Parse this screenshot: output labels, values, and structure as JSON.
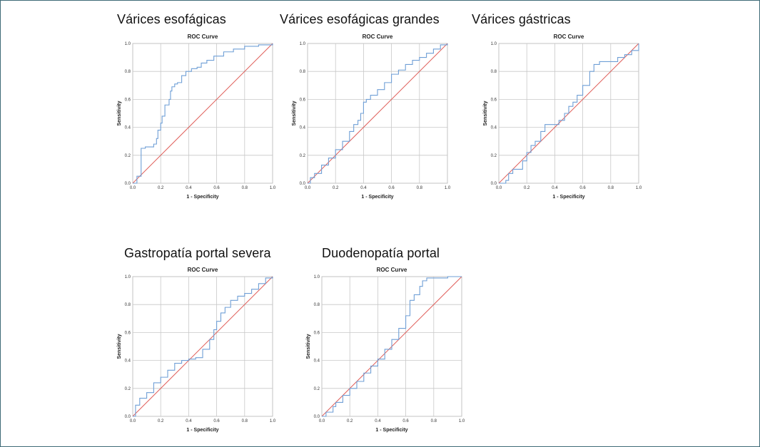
{
  "panels": [
    {
      "id": "varices-esofagicas",
      "heading": "Várices esofágicas",
      "chart_data": {
        "type": "line",
        "title": "ROC Curve",
        "xlabel": "1 - Specificity",
        "ylabel": "Sensitivity",
        "xlim": [
          0,
          1
        ],
        "ylim": [
          0,
          1
        ],
        "ticks": [
          "0.0",
          "0.2",
          "0.4",
          "0.6",
          "0.8",
          "1.0"
        ],
        "grid": true,
        "series": [
          {
            "role": "roc-curve",
            "color": "#6f9fd6",
            "x": [
              0.0,
              0.03,
              0.06,
              0.06,
              0.09,
              0.15,
              0.17,
              0.18,
              0.2,
              0.21,
              0.23,
              0.26,
              0.27,
              0.28,
              0.3,
              0.32,
              0.35,
              0.38,
              0.42,
              0.46,
              0.49,
              0.53,
              0.58,
              0.65,
              0.72,
              0.8,
              0.9,
              1.0
            ],
            "y": [
              0.0,
              0.05,
              0.13,
              0.25,
              0.26,
              0.28,
              0.32,
              0.38,
              0.43,
              0.48,
              0.56,
              0.6,
              0.66,
              0.69,
              0.71,
              0.72,
              0.77,
              0.8,
              0.82,
              0.83,
              0.86,
              0.88,
              0.91,
              0.94,
              0.96,
              0.98,
              0.99,
              1.0
            ]
          },
          {
            "role": "reference-line",
            "color": "#e0605c",
            "x": [
              0,
              1
            ],
            "y": [
              0,
              1
            ]
          }
        ]
      }
    },
    {
      "id": "varices-esofagicas-grandes",
      "heading": "Várices esofágicas grandes",
      "chart_data": {
        "type": "line",
        "title": "ROC Curve",
        "xlabel": "1 - Specificity",
        "ylabel": "Sensitivity",
        "xlim": [
          0,
          1
        ],
        "ylim": [
          0,
          1
        ],
        "ticks": [
          "0.0",
          "0.2",
          "0.4",
          "0.6",
          "0.8",
          "1.0"
        ],
        "grid": true,
        "series": [
          {
            "role": "roc-curve",
            "color": "#6f9fd6",
            "x": [
              0.0,
              0.02,
              0.05,
              0.1,
              0.15,
              0.2,
              0.25,
              0.3,
              0.33,
              0.36,
              0.38,
              0.4,
              0.42,
              0.45,
              0.5,
              0.55,
              0.6,
              0.65,
              0.7,
              0.75,
              0.8,
              0.85,
              0.9,
              0.95,
              1.0
            ],
            "y": [
              0.0,
              0.04,
              0.07,
              0.13,
              0.18,
              0.24,
              0.3,
              0.37,
              0.42,
              0.45,
              0.5,
              0.58,
              0.6,
              0.63,
              0.67,
              0.72,
              0.78,
              0.81,
              0.85,
              0.88,
              0.9,
              0.93,
              0.96,
              0.99,
              1.0
            ]
          },
          {
            "role": "reference-line",
            "color": "#e0605c",
            "x": [
              0,
              1
            ],
            "y": [
              0,
              1
            ]
          }
        ]
      }
    },
    {
      "id": "varices-gastricas",
      "heading": "Várices gástricas",
      "chart_data": {
        "type": "line",
        "title": "ROC Curve",
        "xlabel": "1 - Specificity",
        "ylabel": "Sensitivity",
        "xlim": [
          0,
          1
        ],
        "ylim": [
          0,
          1
        ],
        "ticks": [
          "0.0",
          "0.2",
          "0.4",
          "0.6",
          "0.8",
          "1.0"
        ],
        "grid": true,
        "series": [
          {
            "role": "roc-curve",
            "color": "#6f9fd6",
            "x": [
              0.0,
              0.05,
              0.07,
              0.1,
              0.15,
              0.17,
              0.2,
              0.23,
              0.26,
              0.3,
              0.33,
              0.36,
              0.4,
              0.43,
              0.47,
              0.5,
              0.53,
              0.56,
              0.6,
              0.62,
              0.65,
              0.68,
              0.72,
              0.78,
              0.85,
              0.9,
              0.95,
              1.0
            ],
            "y": [
              0.0,
              0.02,
              0.07,
              0.1,
              0.1,
              0.16,
              0.22,
              0.27,
              0.3,
              0.37,
              0.42,
              0.42,
              0.42,
              0.45,
              0.5,
              0.55,
              0.58,
              0.63,
              0.7,
              0.7,
              0.8,
              0.85,
              0.87,
              0.87,
              0.9,
              0.92,
              0.95,
              1.0
            ]
          },
          {
            "role": "reference-line",
            "color": "#e0605c",
            "x": [
              0,
              1
            ],
            "y": [
              0,
              1
            ]
          }
        ]
      }
    },
    {
      "id": "gastropatia-portal-severa",
      "heading": "Gastropatía portal severa",
      "chart_data": {
        "type": "line",
        "title": "ROC Curve",
        "xlabel": "1 - Specificity",
        "ylabel": "Sensitivity",
        "xlim": [
          0,
          1
        ],
        "ylim": [
          0,
          1
        ],
        "ticks": [
          "0.0",
          "0.2",
          "0.4",
          "0.6",
          "0.8",
          "1.0"
        ],
        "grid": true,
        "series": [
          {
            "role": "roc-curve",
            "color": "#6f9fd6",
            "x": [
              0.0,
              0.02,
              0.05,
              0.1,
              0.15,
              0.2,
              0.25,
              0.3,
              0.35,
              0.4,
              0.45,
              0.5,
              0.55,
              0.58,
              0.6,
              0.63,
              0.66,
              0.7,
              0.75,
              0.8,
              0.85,
              0.9,
              0.95,
              1.0
            ],
            "y": [
              0.0,
              0.08,
              0.13,
              0.17,
              0.24,
              0.28,
              0.33,
              0.38,
              0.4,
              0.41,
              0.42,
              0.48,
              0.55,
              0.62,
              0.68,
              0.74,
              0.78,
              0.83,
              0.86,
              0.88,
              0.91,
              0.95,
              0.99,
              1.0
            ]
          },
          {
            "role": "reference-line",
            "color": "#e0605c",
            "x": [
              0,
              1
            ],
            "y": [
              0,
              1
            ]
          }
        ]
      }
    },
    {
      "id": "duodenopatia-portal",
      "heading": "Duodenopatía portal",
      "chart_data": {
        "type": "line",
        "title": "ROC Curve",
        "xlabel": "1 - Specificity",
        "ylabel": "Sensitivity",
        "xlim": [
          0,
          1
        ],
        "ylim": [
          0,
          1
        ],
        "ticks": [
          "0.0",
          "0.2",
          "0.4",
          "0.6",
          "0.8",
          "1.0"
        ],
        "grid": true,
        "series": [
          {
            "role": "roc-curve",
            "color": "#6f9fd6",
            "x": [
              0.0,
              0.03,
              0.08,
              0.1,
              0.15,
              0.2,
              0.25,
              0.3,
              0.35,
              0.4,
              0.45,
              0.5,
              0.55,
              0.6,
              0.63,
              0.66,
              0.7,
              0.72,
              0.75,
              0.8,
              0.9,
              1.0
            ],
            "y": [
              0.0,
              0.03,
              0.07,
              0.1,
              0.15,
              0.2,
              0.25,
              0.31,
              0.36,
              0.41,
              0.48,
              0.55,
              0.63,
              0.72,
              0.83,
              0.87,
              0.93,
              0.97,
              0.99,
              0.99,
              1.0,
              1.0
            ]
          },
          {
            "role": "reference-line",
            "color": "#e0605c",
            "x": [
              0,
              1
            ],
            "y": [
              0,
              1
            ]
          }
        ]
      }
    }
  ]
}
